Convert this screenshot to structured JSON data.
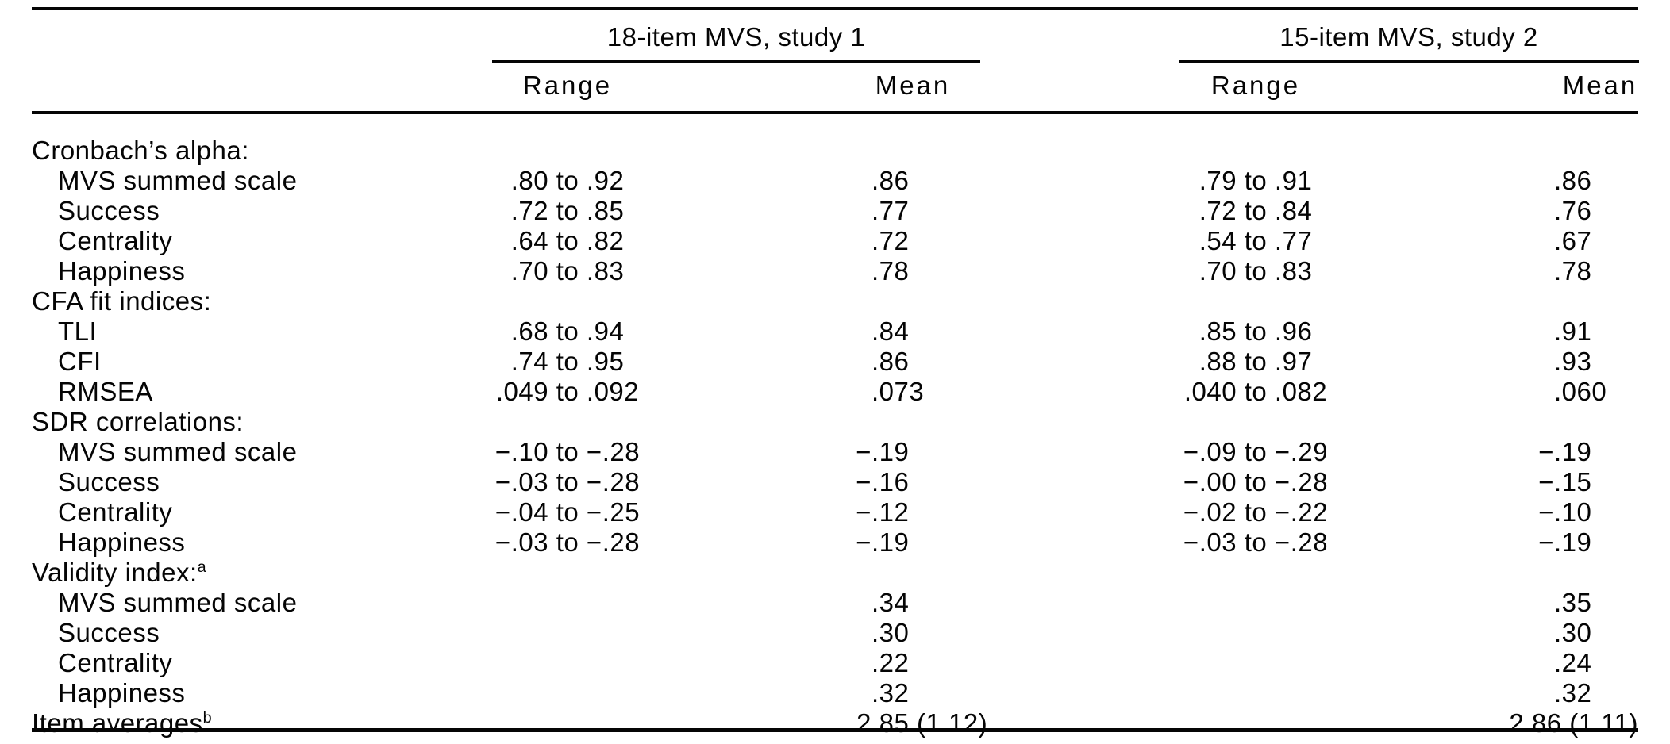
{
  "colors": {
    "text": "#050505",
    "background": "#ffffff"
  },
  "table": {
    "groups": [
      {
        "title": "18-item MVS, study 1",
        "columns": [
          "Range",
          "Mean"
        ]
      },
      {
        "title": "15-item MVS, study 2",
        "columns": [
          "Range",
          "Mean"
        ]
      }
    ],
    "rows": [
      {
        "label": "Cronbach’s alpha:",
        "sup": "",
        "indent": 0,
        "s1_range": "",
        "s1_mean": "",
        "s2_range": "",
        "s2_mean": ""
      },
      {
        "label": "MVS summed scale",
        "sup": "",
        "indent": 1,
        "s1_range": ".80 to .92",
        "s1_mean": ".86",
        "s2_range": ".79 to .91",
        "s2_mean": ".86"
      },
      {
        "label": "Success",
        "sup": "",
        "indent": 1,
        "s1_range": ".72 to .85",
        "s1_mean": ".77",
        "s2_range": ".72 to .84",
        "s2_mean": ".76"
      },
      {
        "label": "Centrality",
        "sup": "",
        "indent": 1,
        "s1_range": ".64 to .82",
        "s1_mean": ".72",
        "s2_range": ".54 to .77",
        "s2_mean": ".67"
      },
      {
        "label": "Happiness",
        "sup": "",
        "indent": 1,
        "s1_range": ".70 to .83",
        "s1_mean": ".78",
        "s2_range": ".70 to .83",
        "s2_mean": ".78"
      },
      {
        "label": "CFA fit indices:",
        "sup": "",
        "indent": 0,
        "s1_range": "",
        "s1_mean": "",
        "s2_range": "",
        "s2_mean": ""
      },
      {
        "label": "TLI",
        "sup": "",
        "indent": 1,
        "s1_range": ".68 to .94",
        "s1_mean": ".84",
        "s2_range": ".85 to .96",
        "s2_mean": ".91"
      },
      {
        "label": "CFI",
        "sup": "",
        "indent": 1,
        "s1_range": ".74 to .95",
        "s1_mean": ".86",
        "s2_range": ".88 to .97",
        "s2_mean": ".93"
      },
      {
        "label": "RMSEA",
        "sup": "",
        "indent": 1,
        "s1_range": ".049 to .092",
        "s1_mean": ".073",
        "s2_range": ".040 to .082",
        "s2_mean": ".060"
      },
      {
        "label": "SDR correlations:",
        "sup": "",
        "indent": 0,
        "s1_range": "",
        "s1_mean": "",
        "s2_range": "",
        "s2_mean": ""
      },
      {
        "label": "MVS summed scale",
        "sup": "",
        "indent": 1,
        "s1_range": "−.10 to −.28",
        "s1_mean": "−.19",
        "s2_range": "−.09 to −.29",
        "s2_mean": "−.19"
      },
      {
        "label": "Success",
        "sup": "",
        "indent": 1,
        "s1_range": "−.03 to −.28",
        "s1_mean": "−.16",
        "s2_range": "−.00 to −.28",
        "s2_mean": "−.15"
      },
      {
        "label": "Centrality",
        "sup": "",
        "indent": 1,
        "s1_range": "−.04 to −.25",
        "s1_mean": "−.12",
        "s2_range": "−.02 to −.22",
        "s2_mean": "−.10"
      },
      {
        "label": "Happiness",
        "sup": "",
        "indent": 1,
        "s1_range": "−.03 to −.28",
        "s1_mean": "−.19",
        "s2_range": "−.03 to −.28",
        "s2_mean": "−.19"
      },
      {
        "label": "Validity index:",
        "sup": "a",
        "indent": 0,
        "s1_range": "",
        "s1_mean": "",
        "s2_range": "",
        "s2_mean": ""
      },
      {
        "label": "MVS summed scale",
        "sup": "",
        "indent": 1,
        "s1_range": "",
        "s1_mean": ".34",
        "s2_range": "",
        "s2_mean": ".35"
      },
      {
        "label": "Success",
        "sup": "",
        "indent": 1,
        "s1_range": "",
        "s1_mean": ".30",
        "s2_range": "",
        "s2_mean": ".30"
      },
      {
        "label": "Centrality",
        "sup": "",
        "indent": 1,
        "s1_range": "",
        "s1_mean": ".22",
        "s2_range": "",
        "s2_mean": ".24"
      },
      {
        "label": "Happiness",
        "sup": "",
        "indent": 1,
        "s1_range": "",
        "s1_mean": ".32",
        "s2_range": "",
        "s2_mean": ".32"
      },
      {
        "label": "Item averages",
        "sup": "b",
        "indent": 0,
        "s1_range": "",
        "s1_mean": "2.85 (1.12)",
        "s2_range": "",
        "s2_mean": "2.86 (1.11)"
      }
    ]
  }
}
